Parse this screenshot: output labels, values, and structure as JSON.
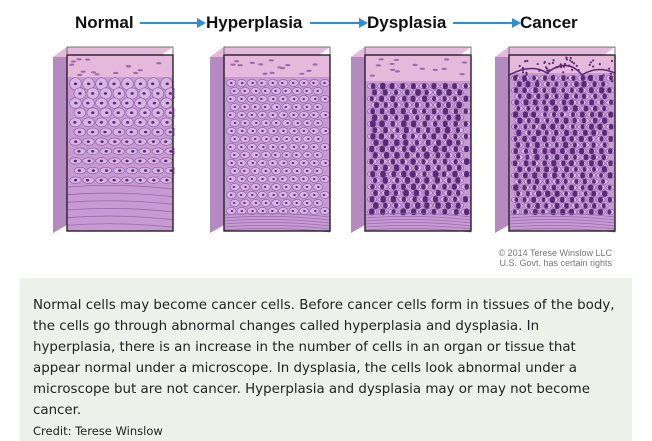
{
  "figure": {
    "stages": [
      {
        "label": "Normal"
      },
      {
        "label": "Hyperplasia"
      },
      {
        "label": "Dysplasia"
      },
      {
        "label": "Cancer"
      }
    ],
    "copyright_line1": "© 2014 Terese Winslow LLC",
    "copyright_line2": "U.S. Govt. has certain rights",
    "colors": {
      "arrow": "#2c8fd6",
      "surface_layer": "#e6b9dc",
      "tissue_base": "#c79ad4",
      "cell_fill": "#d8b6e4",
      "nucleus": "#5a2a78"
    }
  },
  "caption": {
    "text": "Normal cells may become cancer cells. Before cancer cells form in tissues of the body, the cells go through abnormal changes called hyperplasia and dysplasia. In hyperplasia, there is an increase in the number of cells in an organ or tissue that appear normal under a microscope. In dysplasia, the cells look abnormal under a microscope but are not cancer. Hyperplasia and dysplasia may or may not become cancer.",
    "credit": "Credit: Terese Winslow"
  }
}
